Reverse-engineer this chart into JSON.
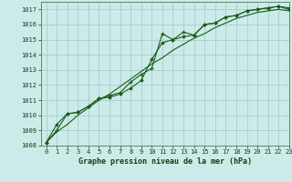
{
  "title": "Graphe pression niveau de la mer (hPa)",
  "bg_color": "#cceae8",
  "grid_color": "#aaccca",
  "line_color": "#1a5c1a",
  "ylim": [
    1008,
    1017.5
  ],
  "xlim": [
    -0.5,
    23
  ],
  "yticks": [
    1008,
    1009,
    1010,
    1011,
    1012,
    1013,
    1014,
    1015,
    1016,
    1017
  ],
  "xticks": [
    0,
    1,
    2,
    3,
    4,
    5,
    6,
    7,
    8,
    9,
    10,
    11,
    12,
    13,
    14,
    15,
    16,
    17,
    18,
    19,
    20,
    21,
    22,
    23
  ],
  "series_smooth_x": [
    0,
    1,
    2,
    3,
    4,
    5,
    6,
    7,
    8,
    9,
    10,
    11,
    12,
    13,
    14,
    15,
    16,
    17,
    18,
    19,
    20,
    21,
    22,
    23
  ],
  "series_smooth_y": [
    1008.2,
    1008.9,
    1009.4,
    1010.0,
    1010.5,
    1011.0,
    1011.4,
    1011.9,
    1012.4,
    1012.9,
    1013.4,
    1013.8,
    1014.3,
    1014.7,
    1015.1,
    1015.4,
    1015.8,
    1016.1,
    1016.4,
    1016.6,
    1016.8,
    1016.9,
    1017.0,
    1016.9
  ],
  "series_diamond_x": [
    0,
    1,
    2,
    3,
    4,
    5,
    6,
    7,
    8,
    9,
    10,
    11,
    12,
    13,
    14,
    15,
    16,
    17,
    18,
    19,
    20,
    21,
    22,
    23
  ],
  "series_diamond_y": [
    1008.2,
    1009.4,
    1010.1,
    1010.2,
    1010.6,
    1011.1,
    1011.2,
    1011.4,
    1011.8,
    1012.3,
    1013.7,
    1014.8,
    1015.0,
    1015.2,
    1015.3,
    1016.0,
    1016.1,
    1016.5,
    1016.6,
    1016.9,
    1017.0,
    1017.1,
    1017.2,
    1017.0
  ],
  "series_plus_x": [
    0,
    1,
    2,
    3,
    4,
    5,
    6,
    7,
    8,
    9,
    10,
    11,
    12,
    13,
    14,
    15,
    16,
    17,
    18,
    19,
    20,
    21,
    22,
    23
  ],
  "series_plus_y": [
    1008.2,
    1009.0,
    1010.1,
    1010.2,
    1010.6,
    1011.1,
    1011.3,
    1011.5,
    1012.2,
    1012.7,
    1013.1,
    1015.4,
    1015.0,
    1015.5,
    1015.3,
    1016.0,
    1016.1,
    1016.5,
    1016.6,
    1016.9,
    1017.0,
    1017.1,
    1017.2,
    1017.1
  ]
}
